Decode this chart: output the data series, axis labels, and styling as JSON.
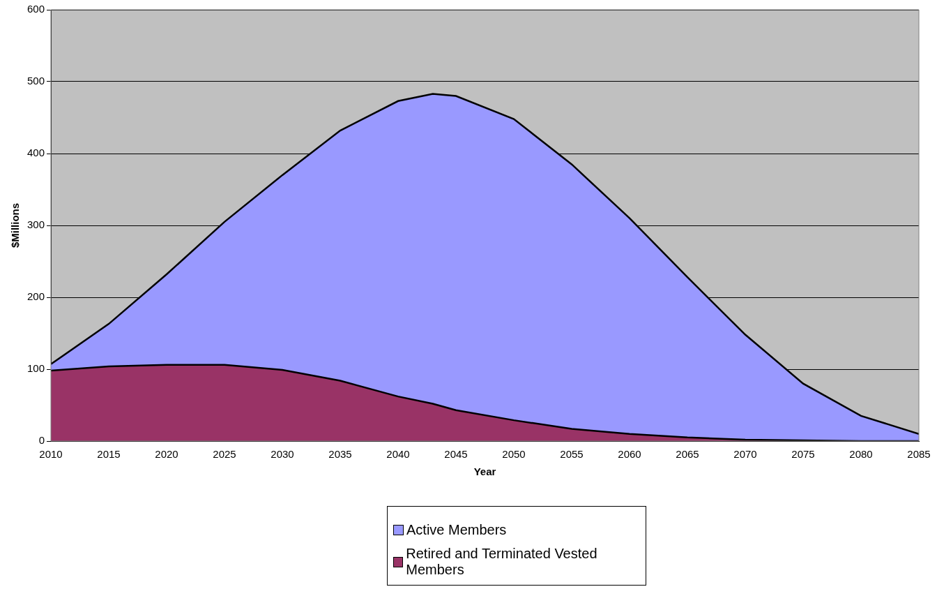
{
  "chart_data": {
    "type": "area",
    "xlabel": "Year",
    "ylabel": "$Millions",
    "x": [
      2010,
      2015,
      2020,
      2025,
      2030,
      2035,
      2040,
      2043,
      2045,
      2050,
      2055,
      2060,
      2065,
      2070,
      2075,
      2080,
      2085
    ],
    "series": [
      {
        "name": "Retired and Terminated Vested Members",
        "color": "#993366",
        "values": [
          98,
          104,
          106,
          106,
          99,
          84,
          62,
          52,
          43,
          29,
          17,
          10,
          5,
          2,
          1,
          0,
          0
        ]
      },
      {
        "name": "Active Members",
        "color": "#9999ff",
        "values": [
          9,
          59,
          126,
          199,
          271,
          348,
          411,
          431,
          437,
          419,
          368,
          300,
          223,
          146,
          79,
          35,
          10
        ]
      }
    ],
    "stacked": true,
    "xlim": [
      2010,
      2085
    ],
    "xticks": [
      2010,
      2015,
      2020,
      2025,
      2030,
      2035,
      2040,
      2045,
      2050,
      2055,
      2060,
      2065,
      2070,
      2075,
      2080,
      2085
    ],
    "ylim": [
      0,
      600
    ],
    "yticks": [
      0,
      100,
      200,
      300,
      400,
      500,
      600
    ],
    "grid": "y",
    "legend": "bottom"
  }
}
